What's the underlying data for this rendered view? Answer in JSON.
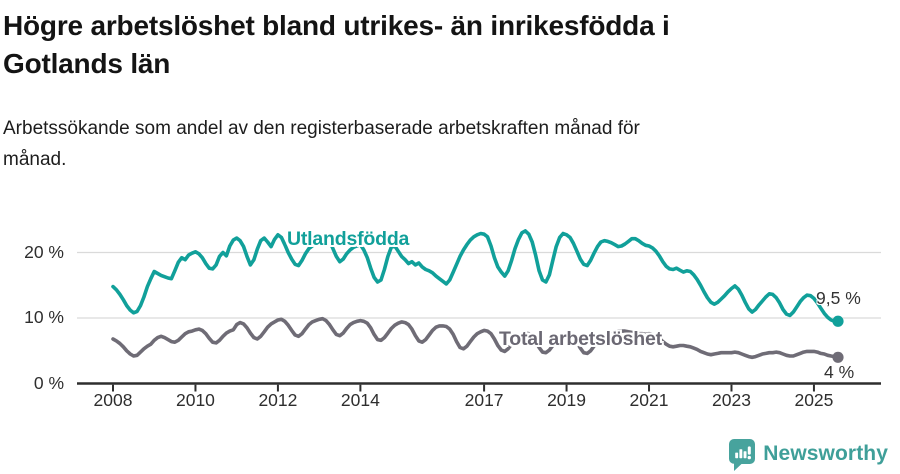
{
  "header": {
    "title": "Högre arbetslöshet bland utrikes- än inrikesfödda i\nGotlands län",
    "subtitle": "Arbetssökande som andel av den registerbaserade arbetskraften månad för\nmånad."
  },
  "chart_data": {
    "type": "line",
    "unit": "%",
    "frequency": "monthly",
    "start": "2008-01",
    "end": "2025-08",
    "grid": "horizontal-only",
    "ylim": [
      0,
      26
    ],
    "colors": {
      "accent_teal": "#11a09a",
      "neutral_gray": "#6f6c76",
      "gridline": "#dadada",
      "axis": "#2e2e2e"
    },
    "x_ticks": [
      {
        "year": 2008,
        "label": "2008"
      },
      {
        "year": 2010,
        "label": "2010"
      },
      {
        "year": 2012,
        "label": "2012"
      },
      {
        "year": 2014,
        "label": "2014"
      },
      {
        "year": 2017,
        "label": "2017"
      },
      {
        "year": 2019,
        "label": "2019"
      },
      {
        "year": 2021,
        "label": "2021"
      },
      {
        "year": 2023,
        "label": "2023"
      },
      {
        "year": 2025,
        "label": "2025"
      }
    ],
    "y_ticks": [
      {
        "value": 0,
        "label": "0 %"
      },
      {
        "value": 10,
        "label": "10 %"
      },
      {
        "value": 20,
        "label": "20 %"
      }
    ],
    "series": [
      {
        "name": "Utlandsfödda",
        "label": "Utlandsfödda",
        "end_label": "9,5 %",
        "last_value": 9.5,
        "color": "#11a09a",
        "values": [
          14.8,
          14.3,
          13.6,
          12.8,
          11.9,
          11.2,
          10.8,
          11.0,
          11.9,
          13.2,
          14.8,
          16.0,
          17.1,
          16.8,
          16.5,
          16.3,
          16.1,
          16.0,
          17.2,
          18.5,
          19.2,
          18.9,
          19.6,
          19.9,
          20.1,
          19.8,
          19.2,
          18.3,
          17.6,
          17.5,
          18.1,
          19.4,
          20.0,
          19.5,
          21.0,
          21.9,
          22.2,
          21.8,
          20.9,
          19.4,
          18.1,
          18.9,
          20.5,
          21.8,
          22.2,
          21.6,
          20.9,
          22.0,
          22.7,
          22.3,
          21.2,
          20.0,
          19.0,
          18.2,
          18.0,
          18.8,
          19.8,
          20.6,
          21.0,
          21.4,
          21.8,
          22.3,
          22.6,
          21.8,
          20.6,
          19.4,
          18.6,
          19.0,
          19.8,
          20.4,
          20.8,
          21.0,
          21.2,
          20.4,
          19.2,
          17.6,
          16.2,
          15.5,
          15.8,
          17.4,
          19.4,
          20.8,
          21.0,
          20.2,
          19.4,
          18.9,
          18.3,
          18.6,
          18.1,
          18.4,
          17.8,
          17.4,
          17.2,
          16.9,
          16.4,
          16.0,
          15.6,
          15.2,
          15.8,
          17.0,
          18.2,
          19.4,
          20.4,
          21.2,
          21.9,
          22.4,
          22.7,
          22.9,
          22.8,
          22.4,
          21.0,
          19.2,
          17.8,
          17.0,
          16.4,
          17.2,
          18.8,
          20.6,
          22.0,
          23.0,
          23.3,
          22.8,
          21.6,
          19.6,
          17.2,
          15.8,
          15.5,
          16.6,
          18.8,
          20.9,
          22.3,
          22.9,
          22.7,
          22.3,
          21.4,
          20.2,
          19.0,
          18.2,
          18.0,
          18.8,
          19.9,
          20.9,
          21.6,
          21.8,
          21.7,
          21.5,
          21.2,
          20.9,
          21.0,
          21.3,
          21.7,
          22.1,
          22.1,
          21.8,
          21.4,
          21.1,
          21.0,
          20.7,
          20.2,
          19.5,
          18.6,
          17.9,
          17.5,
          17.4,
          17.6,
          17.3,
          17.0,
          17.2,
          17.1,
          16.6,
          15.9,
          15.0,
          14.0,
          13.1,
          12.4,
          12.1,
          12.4,
          12.9,
          13.4,
          14.0,
          14.5,
          14.9,
          14.4,
          13.5,
          12.4,
          11.4,
          10.9,
          11.3,
          12.0,
          12.6,
          13.2,
          13.7,
          13.6,
          13.1,
          12.3,
          11.3,
          10.6,
          10.4,
          10.9,
          11.7,
          12.5,
          13.1,
          13.5,
          13.4,
          13.0,
          12.3,
          11.5,
          10.7,
          10.1,
          9.7,
          9.5,
          9.5
        ]
      },
      {
        "name": "Total arbetslöshet",
        "label": "Total arbetslöshet",
        "end_label": "4 %",
        "last_value": 4.0,
        "color": "#6f6c76",
        "values": [
          6.8,
          6.5,
          6.1,
          5.6,
          5.0,
          4.5,
          4.2,
          4.3,
          4.8,
          5.3,
          5.7,
          6.0,
          6.6,
          7.0,
          7.2,
          7.0,
          6.7,
          6.4,
          6.3,
          6.6,
          7.1,
          7.6,
          7.9,
          8.0,
          8.2,
          8.3,
          8.1,
          7.6,
          6.9,
          6.3,
          6.2,
          6.6,
          7.2,
          7.7,
          8.0,
          8.2,
          9.0,
          9.3,
          9.1,
          8.5,
          7.7,
          7.0,
          6.8,
          7.2,
          7.9,
          8.6,
          9.1,
          9.4,
          9.7,
          9.8,
          9.5,
          8.9,
          8.1,
          7.4,
          7.2,
          7.6,
          8.3,
          9.0,
          9.4,
          9.6,
          9.8,
          9.9,
          9.6,
          9.0,
          8.2,
          7.5,
          7.3,
          7.7,
          8.4,
          9.0,
          9.3,
          9.5,
          9.6,
          9.5,
          9.2,
          8.5,
          7.5,
          6.7,
          6.6,
          7.0,
          7.7,
          8.4,
          8.9,
          9.2,
          9.4,
          9.3,
          9.0,
          8.3,
          7.3,
          6.5,
          6.3,
          6.7,
          7.4,
          8.1,
          8.6,
          8.8,
          8.8,
          8.7,
          8.3,
          7.5,
          6.4,
          5.5,
          5.3,
          5.7,
          6.4,
          7.1,
          7.6,
          7.9,
          8.1,
          8.0,
          7.6,
          6.8,
          5.8,
          5.1,
          4.9,
          5.3,
          6.0,
          6.7,
          7.2,
          7.5,
          7.7,
          7.6,
          7.2,
          6.4,
          5.5,
          4.8,
          4.7,
          5.1,
          5.8,
          6.5,
          7.0,
          7.3,
          7.5,
          7.4,
          7.0,
          6.3,
          5.4,
          4.7,
          4.6,
          5.0,
          5.7,
          6.4,
          6.9,
          7.2,
          7.4,
          7.5,
          7.8,
          8.0,
          8.0,
          8.0,
          7.9,
          7.8,
          7.7,
          7.6,
          7.6,
          7.5,
          7.6,
          7.5,
          7.3,
          6.9,
          6.4,
          6.0,
          5.7,
          5.6,
          5.7,
          5.8,
          5.8,
          5.7,
          5.6,
          5.4,
          5.2,
          4.9,
          4.7,
          4.5,
          4.4,
          4.5,
          4.6,
          4.7,
          4.7,
          4.7,
          4.7,
          4.8,
          4.7,
          4.5,
          4.3,
          4.1,
          4.0,
          4.1,
          4.3,
          4.5,
          4.6,
          4.7,
          4.7,
          4.8,
          4.7,
          4.5,
          4.3,
          4.2,
          4.2,
          4.4,
          4.6,
          4.8,
          4.9,
          4.9,
          4.9,
          4.8,
          4.6,
          4.5,
          4.3,
          4.2,
          4.1,
          4.0
        ]
      }
    ]
  },
  "footer": {
    "brand": "Newsworthy"
  }
}
